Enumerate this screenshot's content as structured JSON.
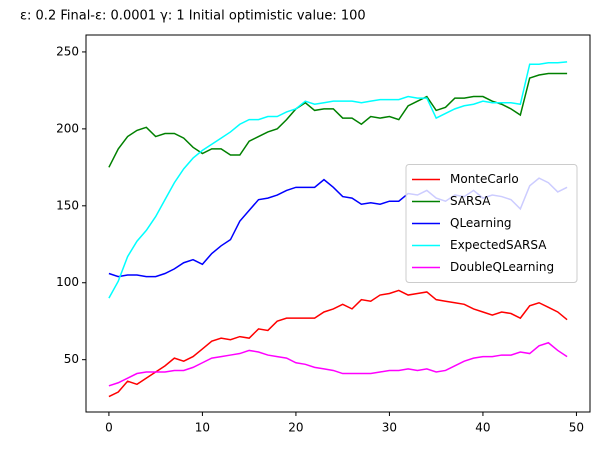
{
  "chart_data": {
    "type": "line",
    "title": "ε: 0.2    Final-ε: 0.0001    γ: 1    Initial optimistic value: 100",
    "x": [
      0,
      1,
      2,
      3,
      4,
      5,
      6,
      7,
      8,
      9,
      10,
      11,
      12,
      13,
      14,
      15,
      16,
      17,
      18,
      19,
      20,
      21,
      22,
      23,
      24,
      25,
      26,
      27,
      28,
      29,
      30,
      31,
      32,
      33,
      34,
      35,
      36,
      37,
      38,
      39,
      40,
      41,
      42,
      43,
      44,
      45,
      46,
      47,
      48,
      49
    ],
    "series": [
      {
        "name": "MonteCarlo",
        "color": "#ff0000",
        "values": [
          26,
          29,
          36,
          34,
          38,
          42,
          46,
          51,
          49,
          52,
          57,
          62,
          64,
          63,
          65,
          64,
          70,
          69,
          75,
          77,
          77,
          77,
          77,
          81,
          83,
          86,
          83,
          89,
          88,
          92,
          93,
          95,
          92,
          93,
          94,
          89,
          88,
          87,
          86,
          83,
          81,
          79,
          81,
          80,
          77,
          85,
          87,
          84,
          81,
          76
        ]
      },
      {
        "name": "SARSA",
        "color": "#008000",
        "values": [
          175,
          187,
          195,
          199,
          201,
          195,
          197,
          197,
          194,
          188,
          184,
          187,
          187,
          183,
          183,
          192,
          195,
          198,
          200,
          206,
          213,
          217,
          212,
          213,
          213,
          207,
          207,
          203,
          208,
          207,
          208,
          206,
          215,
          218,
          221,
          212,
          214,
          220,
          220,
          221,
          221,
          218,
          216,
          213,
          209,
          233,
          235,
          236,
          236,
          236
        ]
      },
      {
        "name": "QLearning",
        "color": "#0000ff",
        "values": [
          106,
          104,
          105,
          105,
          104,
          104,
          106,
          109,
          113,
          115,
          112,
          119,
          124,
          128,
          140,
          147,
          154,
          155,
          157,
          160,
          162,
          162,
          162,
          167,
          162,
          156,
          155,
          151,
          152,
          151,
          153,
          153,
          158,
          157,
          160,
          155,
          153,
          157,
          156,
          160,
          155,
          157,
          156,
          154,
          148,
          163,
          168,
          165,
          159,
          162
        ]
      },
      {
        "name": "ExpectedSARSA",
        "color": "#00ffff",
        "values": [
          90,
          101,
          117,
          127,
          134,
          143,
          154,
          165,
          174,
          181,
          186,
          190,
          194,
          198,
          203,
          206,
          206,
          208,
          208,
          211,
          213,
          218,
          216,
          217,
          218,
          218,
          218,
          217,
          218,
          219,
          219,
          219,
          221,
          220,
          220,
          207,
          210,
          213,
          215,
          216,
          218,
          217,
          217,
          217,
          216,
          242,
          242,
          243,
          243,
          243.5
        ]
      },
      {
        "name": "DoubleQLearning",
        "color": "#ff00ff",
        "values": [
          33,
          35,
          38,
          41,
          42,
          42,
          42,
          43,
          43,
          45,
          48,
          51,
          52,
          53,
          54,
          56,
          55,
          53,
          52,
          51,
          48,
          47,
          45,
          44,
          43,
          41,
          41,
          41,
          41,
          42,
          43,
          43,
          44,
          43,
          44,
          42,
          43,
          46,
          49,
          51,
          52,
          52,
          53,
          53,
          55,
          54,
          59,
          61,
          56,
          52
        ]
      }
    ],
    "xlim": [
      -2.45,
      51.45
    ],
    "xticks": [
      0,
      10,
      20,
      30,
      40,
      50
    ],
    "ylim": [
      16,
      261
    ],
    "yticks": [
      50,
      100,
      150,
      200,
      250
    ],
    "legend": "center right"
  }
}
